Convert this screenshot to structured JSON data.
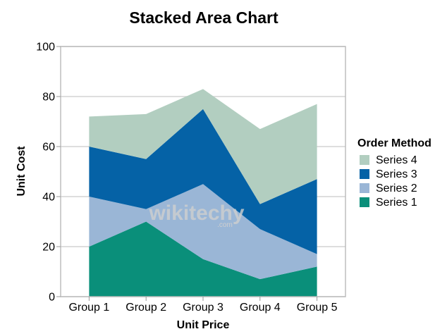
{
  "chart_data": {
    "type": "area",
    "stacked": true,
    "title": "Stacked Area Chart",
    "xlabel": "Unit Price",
    "ylabel": "Unit Cost",
    "categories": [
      "Group 1",
      "Group 2",
      "Group 3",
      "Group 4",
      "Group 5"
    ],
    "ylim": [
      0,
      100
    ],
    "yticks": [
      0,
      20,
      40,
      60,
      80,
      100
    ],
    "grid": true,
    "legend": {
      "title": "Order Method",
      "position": "right"
    },
    "series": [
      {
        "name": "Series 1",
        "color": "#0a8f7a",
        "values": [
          20,
          30,
          15,
          7,
          12
        ]
      },
      {
        "name": "Series 2",
        "color": "#9ab6d6",
        "values": [
          20,
          5,
          30,
          20,
          5
        ]
      },
      {
        "name": "Series 3",
        "color": "#0562a6",
        "values": [
          20,
          20,
          30,
          10,
          30
        ]
      },
      {
        "name": "Series 4",
        "color": "#b2cec0",
        "values": [
          12,
          18,
          8,
          30,
          30
        ]
      }
    ]
  },
  "watermark": {
    "text": "wikitechy",
    "sub": ".com"
  }
}
